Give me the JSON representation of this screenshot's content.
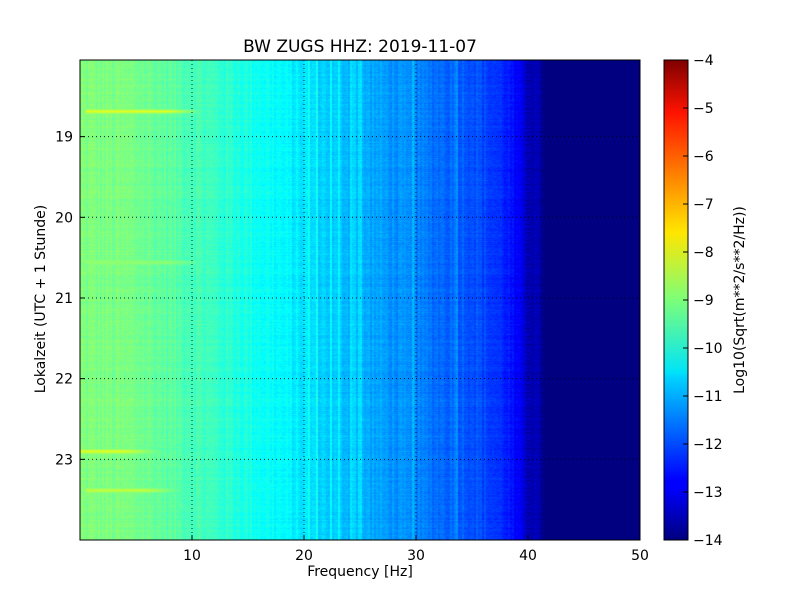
{
  "chart_data": {
    "type": "heatmap",
    "title": "BW ZUGS HHZ: 2019-11-07",
    "xlabel": "Frequency [Hz]",
    "ylabel": "Lokalzeit (UTC + 1 Stunde)",
    "xlim": [
      0,
      50
    ],
    "ylim": [
      24,
      18.05
    ],
    "x_ticks": [
      10,
      20,
      30,
      40,
      50
    ],
    "y_ticks": [
      19,
      20,
      21,
      22,
      23
    ],
    "grid": true,
    "colormap": "jet",
    "colorbar": {
      "label": "Log10(Sqrt(m**2/s**2/Hz))",
      "range": [
        -14,
        -4
      ],
      "ticks": [
        -4,
        -5,
        -6,
        -7,
        -8,
        -9,
        -10,
        -11,
        -12,
        -13,
        -14
      ]
    },
    "spectrum_profile": [
      {
        "frequency": 0,
        "value": -9.0
      },
      {
        "frequency": 5,
        "value": -9.1
      },
      {
        "frequency": 10,
        "value": -9.5
      },
      {
        "frequency": 15,
        "value": -10.0
      },
      {
        "frequency": 20,
        "value": -10.5
      },
      {
        "frequency": 25,
        "value": -11.0
      },
      {
        "frequency": 30,
        "value": -11.5
      },
      {
        "frequency": 35,
        "value": -11.9
      },
      {
        "frequency": 38,
        "value": -12.4
      },
      {
        "frequency": 40,
        "value": -13.3
      },
      {
        "frequency": 42,
        "value": -14.0
      },
      {
        "frequency": 50,
        "value": -14.0
      }
    ],
    "events": [
      {
        "time": 18.68,
        "freq_min": 0.5,
        "freq_max": 8,
        "value": -8.0
      },
      {
        "time": 20.55,
        "freq_min": 0.5,
        "freq_max": 8,
        "value": -8.8
      },
      {
        "time": 22.9,
        "freq_min": 0,
        "freq_max": 4,
        "value": -8.0
      },
      {
        "time": 23.38,
        "freq_min": 0.5,
        "freq_max": 6,
        "value": -8.3
      }
    ]
  }
}
